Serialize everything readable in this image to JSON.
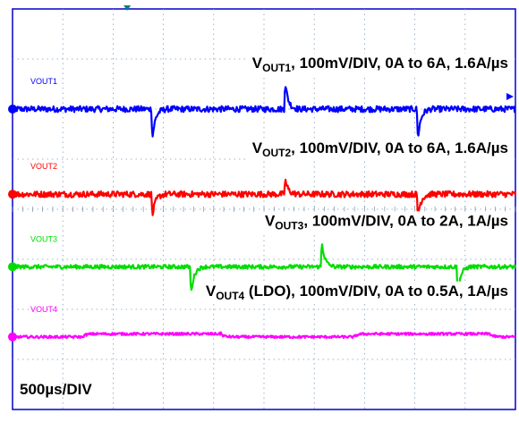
{
  "chart_data": {
    "type": "line",
    "title": "",
    "xlabel": "",
    "ylabel": "",
    "grid": true,
    "timebase": "500µs/DIV",
    "x_divisions": 10,
    "y_divisions": 8,
    "series": [
      {
        "name": "VOUT1",
        "ch_label": "VOUT1",
        "color": "#0000ff",
        "label_parts": [
          [
            "V",
            "b"
          ],
          [
            "OUT1",
            "s"
          ],
          [
            ", 100mV/DIV, 0A to 6A, 1.6A/µs",
            "b"
          ]
        ],
        "baseline_div": -2.0,
        "noise_div": 0.06,
        "events": [
          {
            "t_div": 2.78,
            "dir": -1,
            "amp_div": 0.6
          },
          {
            "t_div": 5.42,
            "dir": 1,
            "amp_div": 0.55
          },
          {
            "t_div": 8.06,
            "dir": -1,
            "amp_div": 0.6
          },
          {
            "t_div": 10.7,
            "dir": 1,
            "amp_div": 0.55
          }
        ],
        "step_after_event_div": 0.0
      },
      {
        "name": "VOUT2",
        "ch_label": "VOUT2",
        "color": "#ff0000",
        "label_parts": [
          [
            "V",
            "b"
          ],
          [
            "OUT2",
            "s"
          ],
          [
            ", 100mV/DIV, 0A to 6A, 1.6A/µs",
            "b"
          ]
        ],
        "baseline_div": -0.3,
        "noise_div": 0.06,
        "events": [
          {
            "t_div": 2.78,
            "dir": -1,
            "amp_div": 0.45
          },
          {
            "t_div": 5.42,
            "dir": 1,
            "amp_div": 0.3
          },
          {
            "t_div": 8.06,
            "dir": -1,
            "amp_div": 0.45
          },
          {
            "t_div": 10.7,
            "dir": 1,
            "amp_div": 0.3
          }
        ],
        "step_after_event_div": 0.0
      },
      {
        "name": "VOUT3",
        "ch_label": "VOUT3",
        "color": "#00dd00",
        "label_parts": [
          [
            "V",
            "b"
          ],
          [
            "OUT3",
            "s"
          ],
          [
            ", 100mV/DIV, 0A to 2A, 1A/µs",
            "b"
          ]
        ],
        "baseline_div": 1.15,
        "noise_div": 0.04,
        "events": [
          {
            "t_div": 3.55,
            "dir": -1,
            "amp_div": 0.55
          },
          {
            "t_div": 6.15,
            "dir": 1,
            "amp_div": 0.5
          },
          {
            "t_div": 8.85,
            "dir": -1,
            "amp_div": 0.55
          },
          {
            "t_div": 11.45,
            "dir": 1,
            "amp_div": 0.5
          }
        ],
        "step_after_event_div": 0.0
      },
      {
        "name": "VOUT4 (LDO)",
        "ch_label": "VOUT4",
        "color": "#ff00ff",
        "label_parts": [
          [
            "V",
            "b"
          ],
          [
            "OUT4",
            "s"
          ],
          [
            " (LDO), 100mV/DIV, 0A to 0.5A, 1A/µs",
            "b"
          ]
        ],
        "baseline_div": 2.55,
        "noise_div": 0.025,
        "events": [
          {
            "t_div": 1.4,
            "dir": -1,
            "amp_div": 0.05,
            "step": 0.06
          },
          {
            "t_div": 4.15,
            "dir": 1,
            "amp_div": 0.05,
            "step": -0.06
          },
          {
            "t_div": 6.8,
            "dir": -1,
            "amp_div": 0.05,
            "step": 0.06
          },
          {
            "t_div": 9.5,
            "dir": 1,
            "amp_div": 0.05,
            "step": -0.06
          }
        ],
        "step_after_event_div": 0.0
      }
    ]
  }
}
